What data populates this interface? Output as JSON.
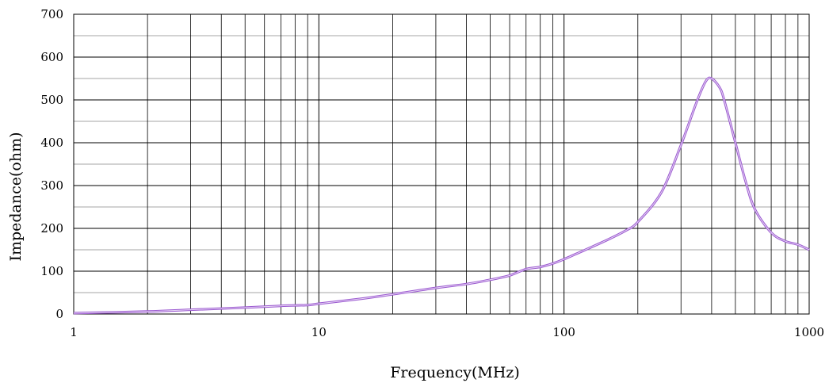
{
  "chart_data": {
    "type": "line",
    "title": "",
    "xlabel": "Frequency(MHz)",
    "ylabel": "Impedance(ohm)",
    "x_scale": "log",
    "xlim": [
      1,
      1000
    ],
    "ylim": [
      0,
      700
    ],
    "x_ticks": [
      "1",
      "10",
      "100",
      "1000"
    ],
    "y_ticks": [
      "0",
      "100",
      "200",
      "300",
      "400",
      "500",
      "600",
      "700"
    ],
    "grid": true,
    "legend": "none",
    "colors": {
      "line": "#9B59D0",
      "grid_major": "#000000",
      "grid_minor": "#A6A6A6"
    },
    "series": [
      {
        "x": [
          1,
          2,
          3,
          5,
          7,
          9,
          10,
          15,
          20,
          30,
          40,
          50,
          60,
          70,
          80,
          90,
          100,
          120,
          150,
          180,
          200,
          250,
          300,
          350,
          380,
          400,
          430,
          450,
          500,
          550,
          600,
          700,
          800,
          900,
          1000
        ],
        "y": [
          2,
          6,
          10,
          15,
          19,
          21,
          24,
          36,
          46,
          61,
          70,
          80,
          90,
          105,
          110,
          118,
          128,
          148,
          173,
          196,
          215,
          285,
          395,
          500,
          545,
          550,
          530,
          500,
          400,
          310,
          245,
          190,
          170,
          162,
          150
        ]
      }
    ]
  }
}
